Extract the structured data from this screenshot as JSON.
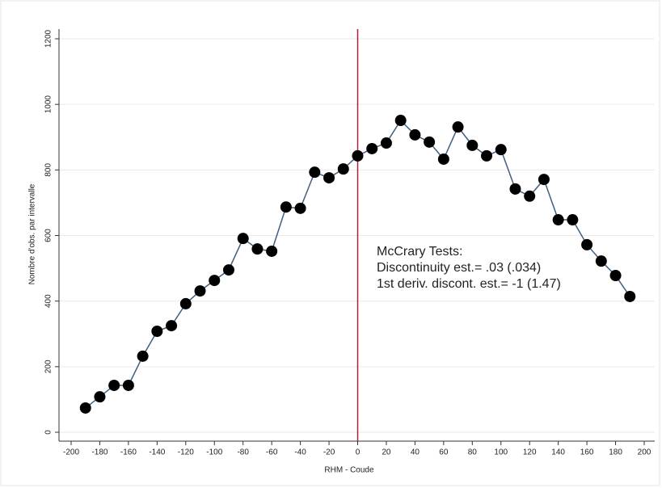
{
  "chart_data": {
    "type": "line",
    "x_label": "RHM - Coude",
    "y_label": "Nombre d'obs. par intervalle",
    "annotations": [
      "McCrary Tests:",
      "Discontinuity est.= .03 (.034)",
      "1st deriv. discont. est.= -1 (1.47)"
    ],
    "reference_line_x": 0,
    "reference_line_color": "#b0203a",
    "series": [
      {
        "color": "#3f5f80",
        "marker_color": "#000000",
        "x": [
          -190,
          -180,
          -170,
          -160,
          -150,
          -140,
          -130,
          -120,
          -110,
          -100,
          -90,
          -80,
          -70,
          -60,
          -50,
          -40,
          -30,
          -20,
          -10,
          0,
          10,
          20,
          30,
          40,
          50,
          60,
          70,
          80,
          90,
          100,
          110,
          120,
          130,
          140,
          150,
          160,
          170,
          180,
          190
        ],
        "values": [
          74,
          108,
          143,
          143,
          232,
          308,
          325,
          392,
          431,
          463,
          495,
          591,
          559,
          552,
          687,
          683,
          793,
          776,
          803,
          843,
          865,
          882,
          951,
          907,
          885,
          833,
          931,
          875,
          843,
          862,
          742,
          720,
          771,
          648,
          648,
          572,
          522,
          478,
          414
        ]
      }
    ],
    "xlim": [
      -200,
      200
    ],
    "xticks": [
      -200,
      -180,
      -160,
      -140,
      -120,
      -100,
      -80,
      -60,
      -40,
      -20,
      0,
      20,
      40,
      60,
      80,
      100,
      120,
      140,
      160,
      180,
      200
    ],
    "ylim": [
      0,
      1200
    ],
    "yticks": [
      0,
      200,
      400,
      600,
      800,
      1000,
      1200
    ],
    "grid": true
  }
}
